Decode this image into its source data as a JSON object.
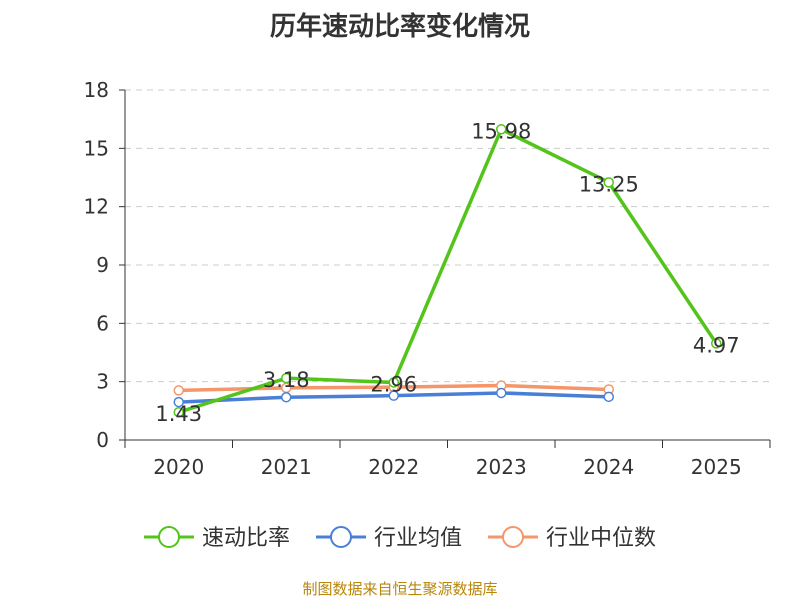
{
  "footer": "制图数据来自恒生聚源数据库",
  "chart_data": {
    "type": "line",
    "title": "历年速动比率变化情况",
    "categories": [
      "2020",
      "2021",
      "2022",
      "2023",
      "2024",
      "2025"
    ],
    "ylim": [
      0,
      18
    ],
    "yticks": [
      0,
      3,
      6,
      9,
      12,
      15,
      18
    ],
    "grid": true,
    "legend_position": "bottom",
    "series": [
      {
        "name": "速动比率",
        "color": "#52c41a",
        "values": [
          1.43,
          3.18,
          2.96,
          15.98,
          13.25,
          4.97
        ],
        "labels": [
          "1.43",
          "3.18",
          "2.96",
          "15.98",
          "13.25",
          "4.97"
        ]
      },
      {
        "name": "行业均值",
        "color": "#4a7fd8",
        "values": [
          1.95,
          2.2,
          2.28,
          2.42,
          2.22,
          null
        ]
      },
      {
        "name": "行业中位数",
        "color": "#f4956a",
        "values": [
          2.55,
          2.68,
          2.72,
          2.8,
          2.6,
          null
        ]
      }
    ]
  }
}
